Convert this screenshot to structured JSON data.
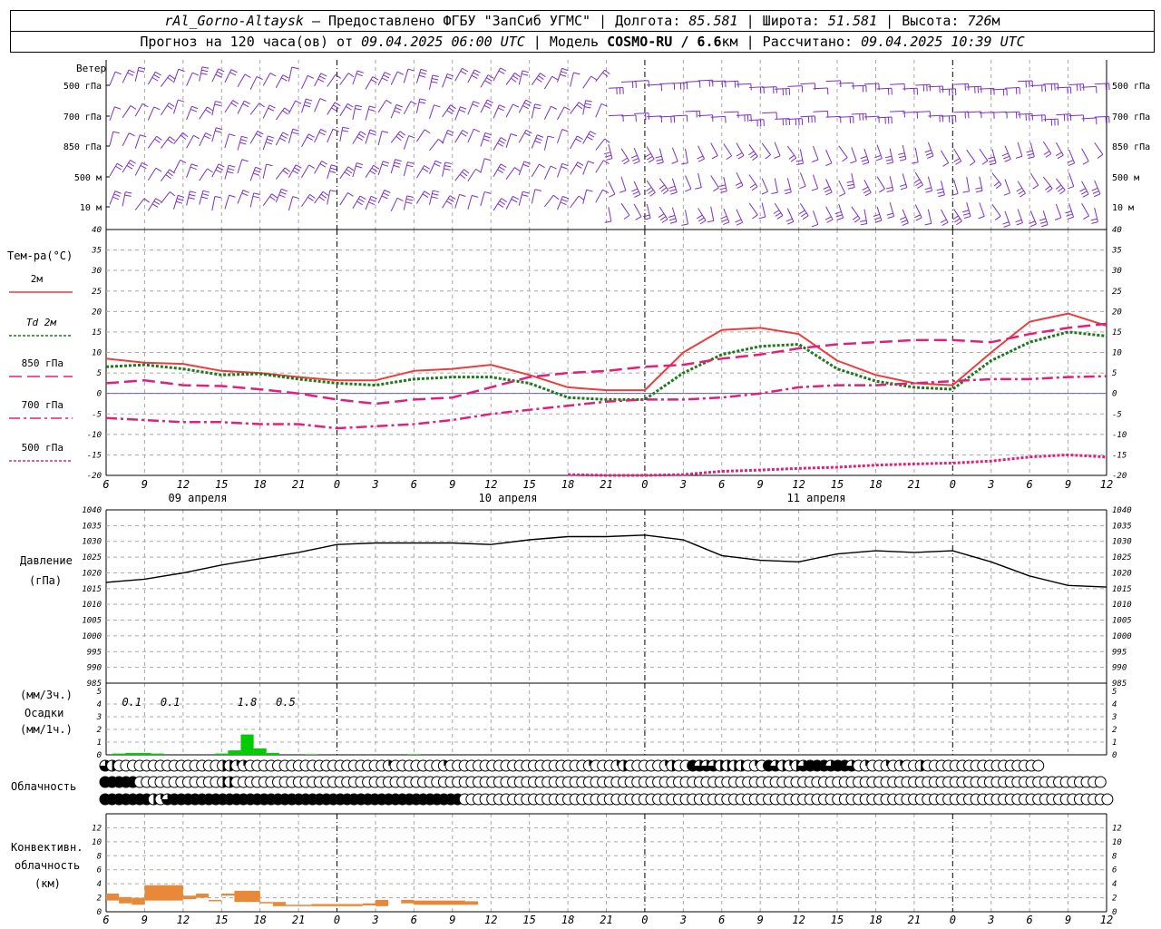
{
  "header": {
    "station": "rAl_Gorno-Altaysk",
    "provider": " – Предоставлено ФГБУ \"ЗапСиб УГМС\" | ",
    "lon_label": "Долгота: ",
    "lon": "85.581",
    "lat_label": " | Широта: ",
    "lat": "51.581",
    "alt_label": " | Высота: ",
    "alt": "726",
    "alt_unit": "м",
    "forecast_label": "Прогноз на 120 часа(ов) от ",
    "forecast_time": "09.04.2025 06:00 UTC",
    "model_label": " | Модель ",
    "model": "COSMO-RU / 6.6",
    "model_unit": "км",
    "calc_label": " | Рассчитано: ",
    "calc_time": "09.04.2025 10:39 UTC"
  },
  "colors": {
    "t2m": "#ee3c3c",
    "td2m": "#1a7a1a",
    "t850": "#e0207a",
    "t700": "#e0207a",
    "t500": "#e0207a",
    "zero_line": "#6060c0",
    "wind": "#7a30c8",
    "pressure": "#000000",
    "precip": "#00cc00",
    "convective": "#e8893a",
    "grid": "#a8a8a8"
  },
  "chart_data": {
    "type": "line",
    "x_hours": [
      6,
      9,
      12,
      15,
      18,
      21,
      0,
      3,
      6,
      9,
      12,
      15,
      18,
      21,
      0,
      3,
      6,
      9,
      12,
      15,
      18,
      21,
      0,
      3,
      6,
      9,
      12
    ],
    "x_labels": [
      "6",
      "9",
      "12",
      "15",
      "18",
      "21",
      "0",
      "3",
      "6",
      "9",
      "12",
      "15",
      "18",
      "21",
      "0",
      "3",
      "6",
      "9",
      "12",
      "15",
      "18",
      "21",
      "0",
      "3",
      "6",
      "9",
      "12"
    ],
    "dates": [
      "09 апреля",
      "10 апреля",
      "11 апреля"
    ],
    "wind_panel": {
      "title": "Ветер",
      "levels": [
        "500 гПа",
        "700 гПа",
        "850 гПа",
        "500 м",
        "10  м"
      ]
    },
    "temperature": {
      "title": "Тем-ра(°C)",
      "ylim": [
        -20,
        40
      ],
      "yticks": [
        -20,
        -15,
        -10,
        -5,
        0,
        5,
        10,
        15,
        20,
        25,
        30,
        35,
        40
      ],
      "legend": [
        "2м",
        "Td 2м",
        "850 гПа",
        "700 гПа",
        "500 гПа"
      ],
      "series": [
        {
          "name": "2м",
          "values": [
            8.5,
            7.5,
            7.2,
            5.5,
            5.0,
            4.0,
            3.2,
            3.2,
            5.5,
            6.0,
            7.0,
            4.5,
            1.5,
            0.8,
            0.8,
            10.0,
            15.5,
            16.0,
            14.5,
            8.0,
            4.5,
            2.5,
            2.0,
            10.0,
            17.5,
            19.5,
            16.5
          ]
        },
        {
          "name": "Td 2м",
          "values": [
            6.5,
            7.0,
            6.0,
            4.5,
            4.8,
            3.5,
            2.5,
            2.0,
            3.5,
            4.0,
            4.0,
            2.5,
            -1.0,
            -1.5,
            -1.5,
            5.0,
            9.5,
            11.5,
            12.0,
            6.0,
            3.0,
            1.5,
            1.0,
            8.0,
            12.5,
            15.0,
            14.0
          ]
        },
        {
          "name": "850 гПа",
          "values": [
            2.5,
            3.2,
            2.0,
            1.8,
            1.0,
            0.0,
            -1.5,
            -2.5,
            -1.5,
            -1.0,
            1.5,
            4.0,
            5.0,
            5.5,
            6.5,
            7.0,
            8.5,
            9.5,
            11.0,
            12.0,
            12.5,
            13.0,
            13.0,
            12.5,
            14.5,
            16.0,
            17.0
          ]
        },
        {
          "name": "700 гПа",
          "values": [
            -6.0,
            -6.5,
            -7.0,
            -7.0,
            -7.5,
            -7.5,
            -8.5,
            -8.0,
            -7.5,
            -6.5,
            -5.0,
            -4.0,
            -3.0,
            -2.0,
            -1.5,
            -1.5,
            -1.0,
            0.0,
            1.5,
            2.0,
            2.0,
            2.5,
            3.0,
            3.5,
            3.5,
            4.0,
            4.2
          ]
        },
        {
          "name": "500 гПа",
          "values": [
            null,
            null,
            null,
            null,
            null,
            null,
            null,
            null,
            null,
            null,
            null,
            null,
            -19.8,
            -20.0,
            -20.0,
            -19.8,
            -19.0,
            -18.7,
            -18.3,
            -18.0,
            -17.5,
            -17.2,
            -17.0,
            -16.5,
            -15.5,
            -15.0,
            -15.5
          ]
        }
      ]
    },
    "pressure": {
      "title": "Давление",
      "unit": "(гПа)",
      "ylim": [
        985,
        1040
      ],
      "yticks": [
        985,
        990,
        995,
        1000,
        1005,
        1010,
        1015,
        1020,
        1025,
        1030,
        1035,
        1040
      ],
      "values": [
        1017,
        1018,
        1020,
        1022.5,
        1024.5,
        1026.5,
        1029,
        1029.5,
        1029.5,
        1029.5,
        1029,
        1030.5,
        1031.5,
        1031.5,
        1032,
        1030.5,
        1025.5,
        1024,
        1023.5,
        1026,
        1027,
        1026.5,
        1027,
        1023.5,
        1019,
        1016,
        1015.5
      ]
    },
    "precip": {
      "title": "Осадки",
      "unit_top": "(мм/3ч.)",
      "unit_bottom": "(мм/1ч.)",
      "ylim": [
        0,
        5
      ],
      "totals": [
        {
          "label": "0.1",
          "x_hour": 8
        },
        {
          "label": "0.1",
          "x_hour": 11
        },
        {
          "label": "1.8",
          "x_hour": 17
        },
        {
          "label": "0.5",
          "x_hour": 20
        }
      ],
      "hourly": [
        {
          "x_hour": 7,
          "value": 0.1
        },
        {
          "x_hour": 8,
          "value": 0.15
        },
        {
          "x_hour": 9,
          "value": 0.15
        },
        {
          "x_hour": 10,
          "value": 0.1
        },
        {
          "x_hour": 15,
          "value": 0.1
        },
        {
          "x_hour": 16,
          "value": 0.35
        },
        {
          "x_hour": 17,
          "value": 1.6
        },
        {
          "x_hour": 18,
          "value": 0.5
        },
        {
          "x_hour": 19,
          "value": 0.15
        },
        {
          "x_hour": 22,
          "value": 0.05
        },
        {
          "x_hour": 30,
          "value": 0.05
        }
      ]
    },
    "cloud": {
      "title": "Облачность",
      "rows": [
        [
          0.75,
          0.5,
          0,
          0,
          0,
          0,
          0,
          0,
          0,
          0,
          0,
          0,
          0,
          0,
          0,
          0,
          0,
          0.5,
          0.5,
          0.25,
          0.25,
          0,
          0,
          0,
          0,
          0,
          0,
          0,
          0,
          0,
          0,
          0,
          0,
          0,
          0,
          0,
          0,
          0,
          0,
          0,
          0,
          0.25,
          0,
          0,
          0,
          0,
          0,
          0,
          0,
          0.25,
          0,
          0,
          0,
          0,
          0,
          0,
          0,
          0,
          0,
          0,
          0,
          0,
          0,
          0,
          0,
          0,
          0,
          0,
          0,
          0,
          0.25,
          0,
          0,
          0,
          0.25,
          0.5,
          0,
          0,
          0,
          0,
          0,
          0.25,
          0.5,
          0,
          0,
          1,
          0.75,
          0.75,
          0.75,
          0.5,
          0.5,
          0.5,
          0.5,
          0,
          0.25,
          0,
          1,
          0.75,
          0.5,
          0.25,
          0.5,
          0.75,
          1,
          1,
          1,
          0.75,
          1,
          1,
          0.75,
          0,
          0.25,
          0,
          0,
          0.25,
          0,
          0.25,
          0,
          0,
          0.5,
          0,
          0,
          0,
          0,
          0,
          0,
          0,
          0,
          0,
          0,
          0,
          0,
          0,
          0,
          0,
          0,
          0
        ],
        [
          1,
          1,
          1,
          1,
          1,
          0,
          0,
          0,
          0,
          0,
          0,
          0,
          0,
          0,
          0,
          0,
          0,
          0.5,
          0.5,
          0,
          0,
          0,
          0,
          0,
          0,
          0,
          0,
          0,
          0,
          0,
          0,
          0,
          0,
          0,
          0,
          0,
          0,
          0,
          0,
          0,
          0,
          0,
          0,
          0,
          0,
          0,
          0,
          0,
          0,
          0,
          0,
          0,
          0,
          0,
          0,
          0,
          0,
          0,
          0,
          0,
          0,
          0,
          0,
          0,
          0,
          0,
          0,
          0,
          0,
          0,
          0,
          0,
          0,
          0,
          0,
          0,
          0,
          0,
          0,
          0,
          0,
          0,
          0,
          0,
          0,
          0,
          0,
          0,
          0,
          0,
          0,
          0,
          0,
          0,
          0,
          0,
          0,
          0,
          0,
          0,
          0,
          0,
          0,
          0,
          0,
          0,
          0,
          0,
          0,
          0,
          0,
          0,
          0,
          0,
          0,
          0,
          0,
          0,
          0,
          0,
          0,
          0,
          0,
          0,
          0,
          0,
          0,
          0,
          0,
          0,
          0,
          0,
          0,
          0,
          0,
          0,
          0,
          0,
          0,
          0,
          0,
          0,
          0,
          0,
          0
        ],
        [
          1,
          1,
          1,
          1,
          1,
          1,
          1,
          0.5,
          0.25,
          0.75,
          1,
          1,
          1,
          1,
          1,
          1,
          1,
          1,
          1,
          1,
          1,
          1,
          1,
          1,
          1,
          1,
          1,
          1,
          1,
          1,
          1,
          1,
          1,
          1,
          1,
          1,
          1,
          1,
          1,
          1,
          1,
          1,
          1,
          1,
          1,
          1,
          1,
          1,
          1,
          1,
          1,
          1,
          0,
          0,
          0,
          0,
          0,
          0,
          0,
          0,
          0,
          0,
          0,
          0,
          0,
          0,
          0,
          0,
          0,
          0,
          0,
          0,
          0,
          0,
          0,
          0,
          0,
          0,
          0,
          0,
          0,
          0,
          0,
          0,
          0,
          0,
          0,
          0,
          0,
          0,
          0,
          0,
          0,
          0,
          0,
          0,
          0,
          0,
          0,
          0,
          0,
          0,
          0,
          0,
          0,
          0,
          0,
          0,
          0,
          0,
          0,
          0,
          0,
          0,
          0,
          0,
          0,
          0,
          0,
          0,
          0,
          0,
          0,
          0,
          0,
          0,
          0,
          0,
          0,
          0,
          0,
          0,
          0,
          0,
          0,
          0,
          0,
          0,
          0,
          0,
          0,
          0,
          0,
          0,
          0,
          0
        ]
      ]
    },
    "convective": {
      "title_line1": "Конвективн.",
      "title_line2": "облачность",
      "title_line3": "(км)",
      "ylim": [
        0,
        14
      ],
      "yticks": [
        0,
        2,
        4,
        6,
        8,
        10,
        12
      ],
      "layers": [
        {
          "x0": 6,
          "x1": 7,
          "base": 1.6,
          "top": 2.6
        },
        {
          "x0": 7,
          "x1": 8,
          "base": 1.2,
          "top": 2.1
        },
        {
          "x0": 8,
          "x1": 9,
          "base": 1.0,
          "top": 2.0
        },
        {
          "x0": 9,
          "x1": 12,
          "base": 1.6,
          "top": 3.8
        },
        {
          "x0": 12,
          "x1": 13,
          "base": 1.8,
          "top": 2.3
        },
        {
          "x0": 13,
          "x1": 14,
          "base": 2.0,
          "top": 2.6
        },
        {
          "x0": 14,
          "x1": 15,
          "base": 1.5,
          "top": 1.7
        },
        {
          "x0": 15,
          "x1": 16,
          "base": 2.3,
          "top": 2.6
        },
        {
          "x0": 16,
          "x1": 18,
          "base": 1.4,
          "top": 3.0
        },
        {
          "x0": 18,
          "x1": 19,
          "base": 1.2,
          "top": 1.4
        },
        {
          "x0": 19,
          "x1": 20,
          "base": 0.8,
          "top": 1.4
        },
        {
          "x0": 20,
          "x1": 22,
          "base": 0.8,
          "top": 1.0
        },
        {
          "x0": 22,
          "x1": 24,
          "base": 0.8,
          "top": 1.1
        },
        {
          "x0": 24,
          "x1": 26,
          "base": 0.8,
          "top": 1.1
        },
        {
          "x0": 26,
          "x1": 27,
          "base": 0.9,
          "top": 1.2
        },
        {
          "x0": 27,
          "x1": 28,
          "base": 0.8,
          "top": 1.7
        },
        {
          "x0": 29,
          "x1": 30,
          "base": 1.2,
          "top": 1.7
        },
        {
          "x0": 30,
          "x1": 34,
          "base": 1.0,
          "top": 1.6
        },
        {
          "x0": 34,
          "x1": 35,
          "base": 1.0,
          "top": 1.5
        }
      ]
    }
  }
}
